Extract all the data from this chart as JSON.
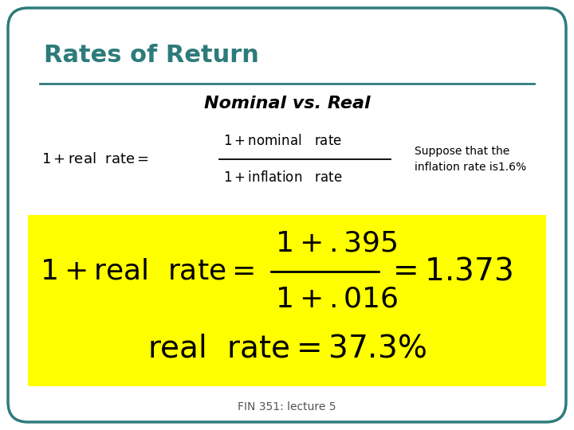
{
  "title": "Rates of Return",
  "title_color": "#2e7b7b",
  "subtitle": "Nominal vs. Real",
  "annotation": "Suppose that the\ninflation rate is1.6%",
  "footer": "FIN 351: lecture 5",
  "background_color": "#ffffff",
  "border_color": "#2e7b7b",
  "yellow_color": "#ffff00",
  "line_color": "#444444",
  "title_fontsize": 22,
  "subtitle_fontsize": 16,
  "formula_fontsize": 13,
  "yellow_fontsize": 26,
  "yellow_font2_size": 28,
  "footer_fontsize": 10
}
